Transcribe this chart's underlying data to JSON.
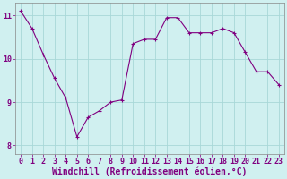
{
  "x": [
    0,
    1,
    2,
    3,
    4,
    5,
    6,
    7,
    8,
    9,
    10,
    11,
    12,
    13,
    14,
    15,
    16,
    17,
    18,
    19,
    20,
    21,
    22,
    23
  ],
  "y": [
    11.1,
    10.7,
    10.1,
    9.55,
    9.1,
    8.2,
    8.65,
    8.8,
    9.0,
    9.05,
    10.35,
    10.45,
    10.45,
    10.95,
    10.95,
    10.6,
    10.6,
    10.6,
    10.7,
    10.6,
    10.15,
    9.7,
    9.7,
    9.4
  ],
  "line_color": "#800080",
  "marker": "+",
  "marker_size": 3,
  "marker_lw": 0.8,
  "bg_color": "#d0f0f0",
  "grid_color": "#a8d8d8",
  "xlabel": "Windchill (Refroidissement éolien,°C)",
  "xlabel_color": "#800080",
  "xlabel_fontsize": 7,
  "tick_fontsize": 6,
  "tick_color": "#800080",
  "ylim": [
    7.8,
    11.3
  ],
  "yticks": [
    8,
    9,
    10,
    11
  ],
  "xticks": [
    0,
    1,
    2,
    3,
    4,
    5,
    6,
    7,
    8,
    9,
    10,
    11,
    12,
    13,
    14,
    15,
    16,
    17,
    18,
    19,
    20,
    21,
    22,
    23
  ]
}
